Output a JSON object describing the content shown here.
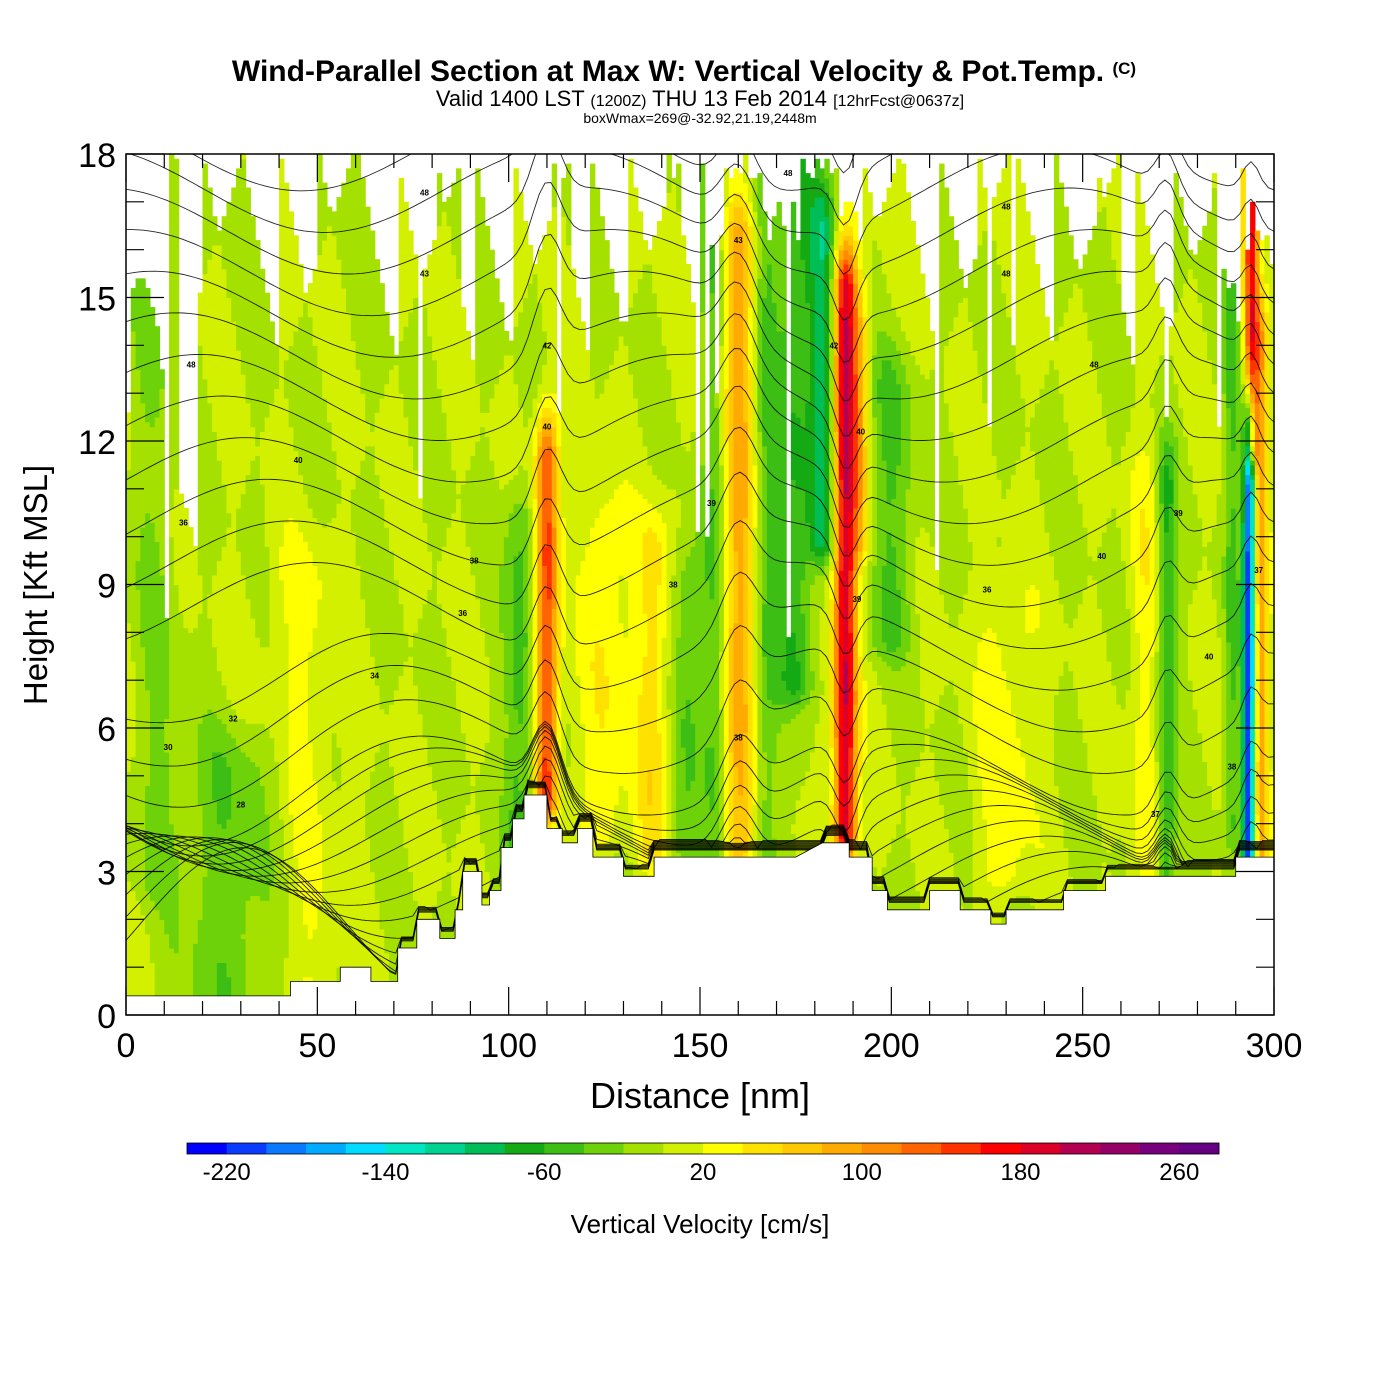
{
  "chart_data": {
    "type": "heatmap",
    "title": "Wind-Parallel Section at Max W: Vertical Velocity & Pot.Temp.",
    "title_mark": "(C)",
    "subtitle_parts": [
      "Valid 1400 LST",
      "(1200Z)",
      "THU 13 Feb 2014",
      "[12hrFcst@0637z]"
    ],
    "subtitle2": "boxWmax=269@-32.92,21.19,2448m",
    "xlabel": "Distance [nm]",
    "ylabel": "Height [Kft MSL]",
    "xlim": [
      0,
      300
    ],
    "ylim": [
      0,
      18
    ],
    "x_ticks": [
      0,
      50,
      100,
      150,
      200,
      250,
      300
    ],
    "y_ticks": [
      0,
      3,
      6,
      9,
      12,
      15,
      18
    ],
    "x_tick_labels": [
      "0",
      "50",
      "100",
      "150",
      "200",
      "250",
      "300"
    ],
    "y_tick_labels": [
      "0",
      "3",
      "6",
      "9",
      "12",
      "15",
      "18"
    ],
    "background_value": 0,
    "colorbar": {
      "label": "Vertical Velocity [cm/s]",
      "min": -240,
      "max": 280,
      "step": 20,
      "tick_values": [
        -220,
        -140,
        -60,
        20,
        100,
        180,
        260
      ],
      "tick_labels": [
        "-220",
        "-140",
        "-60",
        "20",
        "100",
        "180",
        "260"
      ],
      "colors": [
        "#0000ff",
        "#0a3cff",
        "#0a78ff",
        "#00aaff",
        "#00dcff",
        "#00e6c3",
        "#00d291",
        "#00be55",
        "#14aa14",
        "#3cbe14",
        "#6ed20a",
        "#a5e100",
        "#d2f000",
        "#ffff00",
        "#ffe100",
        "#ffc800",
        "#ffaa00",
        "#ff8c00",
        "#ff6400",
        "#ff3200",
        "#ff0000",
        "#dc0028",
        "#b40050",
        "#960064",
        "#78007d",
        "#640082"
      ]
    },
    "terrain": [
      [
        0,
        0.4
      ],
      [
        20,
        0.4
      ],
      [
        43,
        0.4
      ],
      [
        43,
        0.7
      ],
      [
        50,
        0.7
      ],
      [
        56,
        0.7
      ],
      [
        56,
        1
      ],
      [
        64,
        1
      ],
      [
        64,
        0.7
      ],
      [
        71,
        0.7
      ],
      [
        71,
        1.4
      ],
      [
        76,
        1.4
      ],
      [
        76,
        2
      ],
      [
        82,
        2
      ],
      [
        82,
        1.6
      ],
      [
        86,
        1.6
      ],
      [
        86,
        2.2
      ],
      [
        88,
        2.2
      ],
      [
        88,
        3
      ],
      [
        93,
        3
      ],
      [
        93,
        2.3
      ],
      [
        95,
        2.3
      ],
      [
        95,
        2.6
      ],
      [
        98,
        2.6
      ],
      [
        98,
        3.5
      ],
      [
        101,
        3.5
      ],
      [
        101,
        4.1
      ],
      [
        104,
        4.1
      ],
      [
        104,
        4.6
      ],
      [
        110,
        4.6
      ],
      [
        110,
        3.9
      ],
      [
        114,
        3.9
      ],
      [
        114,
        3.6
      ],
      [
        118,
        3.6
      ],
      [
        118,
        3.9
      ],
      [
        122,
        3.9
      ],
      [
        122,
        3.3
      ],
      [
        130,
        3.3
      ],
      [
        130,
        2.9
      ],
      [
        138,
        2.9
      ],
      [
        138,
        3.3
      ],
      [
        175,
        3.3
      ],
      [
        182,
        3.6
      ],
      [
        189,
        3.6
      ],
      [
        189,
        3.3
      ],
      [
        195,
        3.3
      ],
      [
        195,
        2.6
      ],
      [
        199,
        2.6
      ],
      [
        199,
        2.2
      ],
      [
        210,
        2.2
      ],
      [
        210,
        2.6
      ],
      [
        218,
        2.6
      ],
      [
        218,
        2.2
      ],
      [
        226,
        2.2
      ],
      [
        226,
        1.9
      ],
      [
        230,
        1.9
      ],
      [
        230,
        2.2
      ],
      [
        245,
        2.2
      ],
      [
        245,
        2.6
      ],
      [
        256,
        2.6
      ],
      [
        256,
        2.9
      ],
      [
        290,
        2.9
      ],
      [
        290,
        3.3
      ],
      [
        300,
        3.3
      ]
    ],
    "w_features": [
      {
        "x": 110,
        "z0": 4.6,
        "z1": 11.5,
        "sx": 3,
        "amp": 150
      },
      {
        "x": 103,
        "z0": 3,
        "z1": 10,
        "sx": 4,
        "amp": -50
      },
      {
        "x": 125,
        "z0": 4,
        "z1": 10,
        "sx": 6,
        "amp": 40
      },
      {
        "x": 138,
        "z0": 3.5,
        "z1": 9.5,
        "sx": 5,
        "amp": 50
      },
      {
        "x": 147,
        "z0": 3.5,
        "z1": 9,
        "sx": 5,
        "amp": -40
      },
      {
        "x": 160,
        "z0": 3.5,
        "z1": 16,
        "sx": 4.5,
        "amp": 90
      },
      {
        "x": 154,
        "z0": 3.5,
        "z1": 18,
        "sx": 3.5,
        "amp": -40
      },
      {
        "x": 167,
        "z0": 3.5,
        "z1": 18,
        "sx": 3.5,
        "amp": -40
      },
      {
        "x": 175,
        "z0": 7,
        "z1": 18,
        "sx": 5,
        "amp": -60
      },
      {
        "x": 182,
        "z0": 10,
        "z1": 16.5,
        "sx": 3.5,
        "amp": -80
      },
      {
        "x": 188,
        "z0": 3.8,
        "z1": 15,
        "sx": 3,
        "amp": 200
      },
      {
        "x": 192,
        "z0": 10,
        "z1": 14,
        "sx": 2.5,
        "amp": 60
      },
      {
        "x": 200,
        "z0": 8,
        "z1": 13,
        "sx": 6,
        "amp": -40
      },
      {
        "x": 230,
        "z0": 3,
        "z1": 8,
        "sx": 8,
        "amp": 30
      },
      {
        "x": 272,
        "z0": 3,
        "z1": 11,
        "sx": 2.5,
        "amp": -60
      },
      {
        "x": 266,
        "z0": 3,
        "z1": 11,
        "sx": 4,
        "amp": 30
      },
      {
        "x": 293.5,
        "z0": 3.5,
        "z1": 12,
        "sx": 1.6,
        "amp": -220
      },
      {
        "x": 296.5,
        "z0": 3.5,
        "z1": 14,
        "sx": 2,
        "amp": 90
      },
      {
        "x": 294,
        "z0": 12,
        "z1": 18,
        "sx": 1.8,
        "amp": 160
      },
      {
        "x": 289,
        "z0": 4,
        "z1": 18,
        "sx": 2,
        "amp": -40
      },
      {
        "x": 46,
        "z0": 0.7,
        "z1": 9,
        "sx": 10,
        "amp": 25
      },
      {
        "x": 28,
        "z0": 0.4,
        "z1": 5,
        "sx": 14,
        "amp": -35
      },
      {
        "x": 8,
        "z0": 3,
        "z1": 18,
        "sx": 6,
        "amp": -20
      }
    ],
    "theta_contours": {
      "levels_K": [
        20,
        22,
        24,
        26,
        28,
        30,
        32,
        34,
        36,
        38,
        40,
        42,
        44,
        46,
        48,
        50
      ],
      "labels": [
        {
          "text": "40",
          "x": 45,
          "y": 11.6
        },
        {
          "text": "36",
          "x": 15,
          "y": 10.3
        },
        {
          "text": "38",
          "x": 91,
          "y": 9.5
        },
        {
          "text": "36",
          "x": 88,
          "y": 8.4
        },
        {
          "text": "34",
          "x": 65,
          "y": 7.1
        },
        {
          "text": "32",
          "x": 28,
          "y": 6.2
        },
        {
          "text": "30",
          "x": 11,
          "y": 5.6
        },
        {
          "text": "28",
          "x": 30,
          "y": 4.4
        },
        {
          "text": "48",
          "x": 78,
          "y": 17.2
        },
        {
          "text": "43",
          "x": 78,
          "y": 15.5
        },
        {
          "text": "48",
          "x": 17,
          "y": 13.6
        },
        {
          "text": "40",
          "x": 110,
          "y": 12.3
        },
        {
          "text": "42",
          "x": 110,
          "y": 14
        },
        {
          "text": "38",
          "x": 143,
          "y": 9.0
        },
        {
          "text": "43",
          "x": 160,
          "y": 16.2
        },
        {
          "text": "38",
          "x": 160,
          "y": 5.8
        },
        {
          "text": "39",
          "x": 153,
          "y": 10.7
        },
        {
          "text": "48",
          "x": 173,
          "y": 17.6
        },
        {
          "text": "42",
          "x": 185,
          "y": 14
        },
        {
          "text": "40",
          "x": 192,
          "y": 12.2
        },
        {
          "text": "39",
          "x": 191,
          "y": 8.7
        },
        {
          "text": "36",
          "x": 225,
          "y": 8.9
        },
        {
          "text": "48",
          "x": 230,
          "y": 16.9
        },
        {
          "text": "48",
          "x": 230,
          "y": 15.5
        },
        {
          "text": "48",
          "x": 253,
          "y": 13.6
        },
        {
          "text": "40",
          "x": 255,
          "y": 9.6
        },
        {
          "text": "39",
          "x": 275,
          "y": 10.5
        },
        {
          "text": "37",
          "x": 269,
          "y": 4.2
        },
        {
          "text": "40",
          "x": 283,
          "y": 7.5
        },
        {
          "text": "38",
          "x": 289,
          "y": 5.2
        },
        {
          "text": "37",
          "x": 296,
          "y": 9.3
        }
      ]
    }
  }
}
